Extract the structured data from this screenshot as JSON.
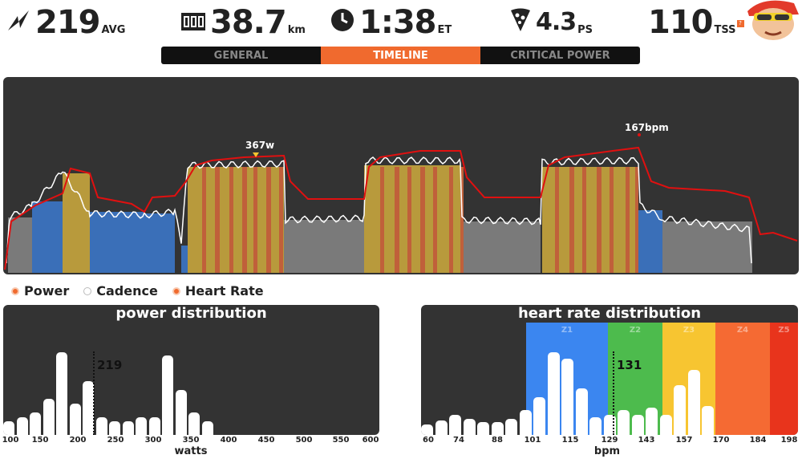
{
  "stats": {
    "power": {
      "value": "219",
      "unit": "AVG",
      "icon": "lightning-icon"
    },
    "distance": {
      "value": "38.7",
      "unit": "km",
      "icon": "odometer-icon"
    },
    "time": {
      "value": "1:38",
      "unit": "ET",
      "icon": "clock-icon"
    },
    "pizza": {
      "value": "4.3",
      "unit": "PS",
      "icon": "pizza-icon"
    },
    "tss": {
      "value": "110",
      "unit": "TSS",
      "icon": "avatar"
    }
  },
  "tabs": [
    {
      "label": "GENERAL",
      "active": false
    },
    {
      "label": "TIMELINE",
      "active": true
    },
    {
      "label": "CRITICAL POWER",
      "active": false
    }
  ],
  "timeline": {
    "power_peak_label": "367w",
    "hr_peak_label": "167bpm"
  },
  "legend": [
    {
      "label": "Power",
      "color": "#f06a2e",
      "on": true
    },
    {
      "label": "Cadence",
      "color": "#ffffff",
      "on": false
    },
    {
      "label": "Heart Rate",
      "color": "#f06a2e",
      "on": true
    }
  ],
  "power_distribution": {
    "title": "power distribution",
    "avg_label": "219",
    "xlabel": "watts",
    "ticks": [
      "100",
      "150",
      "200",
      "250",
      "300",
      "350",
      "400",
      "450",
      "500",
      "550",
      "600"
    ]
  },
  "hr_distribution": {
    "title": "heart rate distribution",
    "avg_label": "131",
    "xlabel": "bpm",
    "ticks": [
      "60",
      "74",
      "88",
      "101",
      "115",
      "129",
      "143",
      "157",
      "170",
      "184",
      "198"
    ],
    "zones": [
      {
        "label": "Z1",
        "color": "#3b86f0"
      },
      {
        "label": "Z2",
        "color": "#4dbb4d"
      },
      {
        "label": "Z3",
        "color": "#f7c531"
      },
      {
        "label": "Z4",
        "color": "#f56a33"
      },
      {
        "label": "Z5",
        "color": "#e8341c"
      }
    ]
  },
  "colors": {
    "accent": "#f06a2e",
    "panel": "#333333",
    "hr_line": "#e01010",
    "power_z2": "#3a6fb8",
    "power_z3": "#b89a3c",
    "power_z4": "#c0603a",
    "power_z1": "#7a7a7a"
  },
  "power_bars": [
    0.15,
    0.2,
    0.25,
    0.4,
    0.92,
    0.35,
    0.6,
    0.2,
    0.15,
    0.15,
    0.2,
    0.2,
    0.88,
    0.5,
    0.25,
    0.15
  ],
  "hr_bars": [
    0.12,
    0.16,
    0.22,
    0.18,
    0.14,
    0.14,
    0.18,
    0.28,
    0.42,
    0.92,
    0.85,
    0.52,
    0.2,
    0.22,
    0.28,
    0.22,
    0.3,
    0.22,
    0.55,
    0.72,
    0.32
  ]
}
